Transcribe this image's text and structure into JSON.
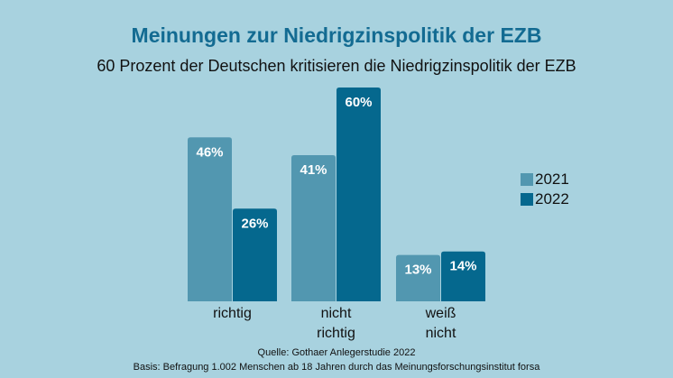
{
  "chart_data": {
    "type": "bar",
    "title": "Meinungen zur Niedrigzinspolitik der EZB",
    "subtitle": "60 Prozent der Deutschen kritisieren die Niedrigzinspolitik der EZB",
    "categories": [
      [
        "richtig"
      ],
      [
        "nicht",
        "richtig"
      ],
      [
        "weiß",
        "nicht"
      ]
    ],
    "series": [
      {
        "name": "2021",
        "color": "#5297b0",
        "values": [
          46,
          41,
          13
        ]
      },
      {
        "name": "2022",
        "color": "#05688e",
        "values": [
          26,
          60,
          14
        ]
      }
    ],
    "value_suffix": "%",
    "xlabel": "",
    "ylabel": "",
    "ylim": [
      0,
      60
    ],
    "grid": false,
    "legend": "right"
  },
  "footer": {
    "source": "Quelle: Gothaer Anlegerstudie 2022",
    "basis": "Basis: Befragung 1.002 Menschen ab 18 Jahren durch das Meinungsforschungsinstitut forsa"
  }
}
